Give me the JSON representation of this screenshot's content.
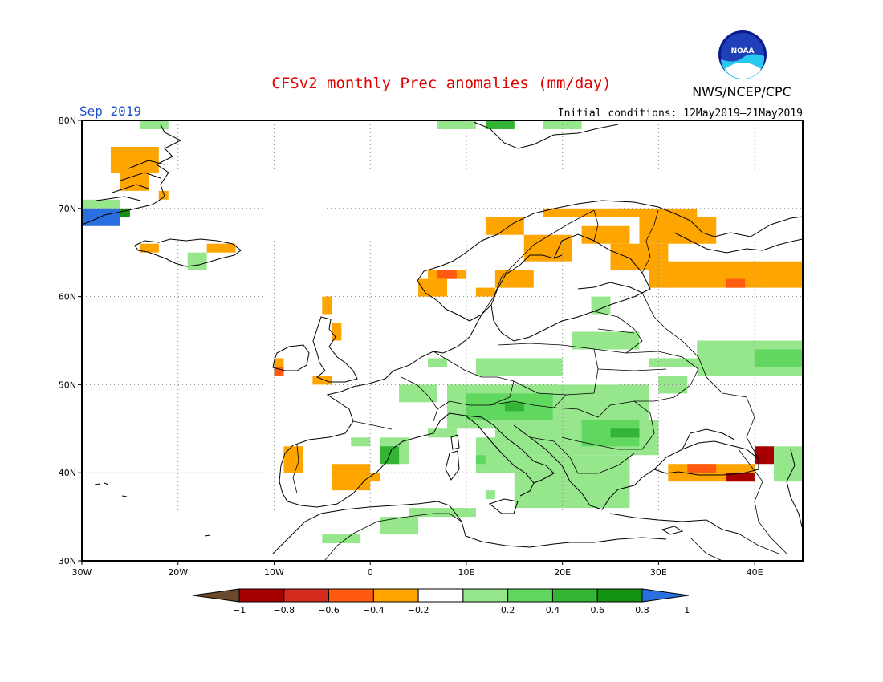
{
  "title": "CFSv2 monthly Prec anomalies (mm/day)",
  "month": "Sep 2019",
  "initial_conditions": "Initial conditions: 12May2019–21May2019",
  "agency": "NWS/NCEP/CPC",
  "logo_text": "NOAA",
  "colors": {
    "title": "#e00000",
    "month": "#1f4fd0",
    "bins": [
      "#6b4a2b",
      "#a80000",
      "#d52a1e",
      "#ff5a10",
      "#ffa500",
      "#ffffff",
      "#96e68c",
      "#60d860",
      "#34b434",
      "#129112",
      "#2a6fe0"
    ]
  },
  "lat_ticks": [
    "30N",
    "40N",
    "50N",
    "60N",
    "70N",
    "80N"
  ],
  "lon_ticks": [
    "30W",
    "20W",
    "10W",
    "0",
    "10E",
    "20E",
    "30E",
    "40E"
  ],
  "colorbar_labels": [
    "−1",
    "−0.8",
    "−0.6",
    "−0.4",
    "−0.2",
    "0.2",
    "0.4",
    "0.6",
    "0.8",
    "1"
  ],
  "grid": {
    "lon_range": [
      -30,
      45
    ],
    "lat_range": [
      30,
      80
    ],
    "cell_deg": 1
  },
  "anomaly_regions": [
    {
      "class": 4,
      "lon": [
        -27,
        -22
      ],
      "lat": [
        74,
        77
      ]
    },
    {
      "class": 4,
      "lon": [
        -26,
        -23
      ],
      "lat": [
        72,
        74
      ]
    },
    {
      "class": 4,
      "lon": [
        -22,
        -21
      ],
      "lat": [
        71,
        72
      ]
    },
    {
      "class": 6,
      "lon": [
        -24,
        -21
      ],
      "lat": [
        79,
        80
      ]
    },
    {
      "class": 6,
      "lon": [
        -30,
        -26
      ],
      "lat": [
        70,
        71
      ]
    },
    {
      "class": 10,
      "lon": [
        -30,
        -26
      ],
      "lat": [
        68,
        70
      ]
    },
    {
      "class": 9,
      "lon": [
        -26,
        -25
      ],
      "lat": [
        69,
        70
      ]
    },
    {
      "class": 4,
      "lon": [
        -24,
        -22
      ],
      "lat": [
        65,
        66
      ]
    },
    {
      "class": 4,
      "lon": [
        -17,
        -14
      ],
      "lat": [
        65,
        66
      ]
    },
    {
      "class": 6,
      "lon": [
        -19,
        -17
      ],
      "lat": [
        63,
        65
      ]
    },
    {
      "class": 4,
      "lon": [
        12,
        16
      ],
      "lat": [
        67,
        69
      ]
    },
    {
      "class": 4,
      "lon": [
        18,
        34
      ],
      "lat": [
        69,
        70
      ]
    },
    {
      "class": 4,
      "lon": [
        16,
        21
      ],
      "lat": [
        64,
        67
      ]
    },
    {
      "class": 4,
      "lon": [
        22,
        27
      ],
      "lat": [
        66,
        68
      ]
    },
    {
      "class": 4,
      "lon": [
        25,
        31
      ],
      "lat": [
        63,
        66
      ]
    },
    {
      "class": 4,
      "lon": [
        29,
        45
      ],
      "lat": [
        61,
        64
      ]
    },
    {
      "class": 4,
      "lon": [
        28,
        36
      ],
      "lat": [
        66,
        69
      ]
    },
    {
      "class": 4,
      "lon": [
        6,
        10
      ],
      "lat": [
        62,
        63
      ]
    },
    {
      "class": 3,
      "lon": [
        7,
        9
      ],
      "lat": [
        62,
        63
      ]
    },
    {
      "class": 4,
      "lon": [
        5,
        8
      ],
      "lat": [
        60,
        62
      ]
    },
    {
      "class": 4,
      "lon": [
        13,
        17
      ],
      "lat": [
        61,
        63
      ]
    },
    {
      "class": 4,
      "lon": [
        11,
        13
      ],
      "lat": [
        60,
        61
      ]
    },
    {
      "class": 3,
      "lon": [
        37,
        39
      ],
      "lat": [
        61,
        62
      ]
    },
    {
      "class": 4,
      "lon": [
        -5,
        -4
      ],
      "lat": [
        58,
        60
      ]
    },
    {
      "class": 4,
      "lon": [
        -4,
        -3
      ],
      "lat": [
        55,
        57
      ]
    },
    {
      "class": 4,
      "lon": [
        -10,
        -9
      ],
      "lat": [
        51,
        53
      ]
    },
    {
      "class": 3,
      "lon": [
        -10,
        -9
      ],
      "lat": [
        51,
        52
      ]
    },
    {
      "class": 4,
      "lon": [
        -6,
        -4
      ],
      "lat": [
        50,
        51
      ]
    },
    {
      "class": 4,
      "lon": [
        -9,
        -7
      ],
      "lat": [
        40,
        43
      ]
    },
    {
      "class": 4,
      "lon": [
        -4,
        0
      ],
      "lat": [
        38,
        41
      ]
    },
    {
      "class": 4,
      "lon": [
        0,
        1
      ],
      "lat": [
        39,
        40
      ]
    },
    {
      "class": 4,
      "lon": [
        31,
        40
      ],
      "lat": [
        39,
        41
      ]
    },
    {
      "class": 3,
      "lon": [
        33,
        36
      ],
      "lat": [
        40,
        41
      ]
    },
    {
      "class": 1,
      "lon": [
        37,
        40
      ],
      "lat": [
        39,
        40
      ]
    },
    {
      "class": 1,
      "lon": [
        40,
        42
      ],
      "lat": [
        41,
        43
      ]
    },
    {
      "class": 6,
      "lon": [
        42,
        45
      ],
      "lat": [
        39,
        43
      ]
    },
    {
      "class": 6,
      "lon": [
        11,
        20
      ],
      "lat": [
        51,
        53
      ]
    },
    {
      "class": 6,
      "lon": [
        8,
        29
      ],
      "lat": [
        45,
        50
      ]
    },
    {
      "class": 7,
      "lon": [
        10,
        19
      ],
      "lat": [
        46,
        49
      ]
    },
    {
      "class": 8,
      "lon": [
        14,
        16
      ],
      "lat": [
        47,
        48
      ]
    },
    {
      "class": 6,
      "lon": [
        13,
        30
      ],
      "lat": [
        42,
        46
      ]
    },
    {
      "class": 7,
      "lon": [
        22,
        28
      ],
      "lat": [
        43,
        46
      ]
    },
    {
      "class": 8,
      "lon": [
        25,
        28
      ],
      "lat": [
        44,
        45
      ]
    },
    {
      "class": 6,
      "lon": [
        15,
        27
      ],
      "lat": [
        36,
        42
      ]
    },
    {
      "class": 6,
      "lon": [
        11,
        17
      ],
      "lat": [
        40,
        44
      ]
    },
    {
      "class": 7,
      "lon": [
        11,
        12
      ],
      "lat": [
        41,
        42
      ]
    },
    {
      "class": 6,
      "lon": [
        1,
        4
      ],
      "lat": [
        41,
        44
      ]
    },
    {
      "class": 8,
      "lon": [
        1,
        3
      ],
      "lat": [
        41,
        43
      ]
    },
    {
      "class": 6,
      "lon": [
        -2,
        0
      ],
      "lat": [
        43,
        44
      ]
    },
    {
      "class": 6,
      "lon": [
        6,
        9
      ],
      "lat": [
        44,
        45
      ]
    },
    {
      "class": 6,
      "lon": [
        34,
        45
      ],
      "lat": [
        51,
        55
      ]
    },
    {
      "class": 7,
      "lon": [
        40,
        45
      ],
      "lat": [
        52,
        54
      ]
    },
    {
      "class": 6,
      "lon": [
        29,
        39
      ],
      "lat": [
        52,
        53
      ]
    },
    {
      "class": 6,
      "lon": [
        21,
        28
      ],
      "lat": [
        54,
        56
      ]
    },
    {
      "class": 6,
      "lon": [
        30,
        33
      ],
      "lat": [
        49,
        51
      ]
    },
    {
      "class": 6,
      "lon": [
        3,
        7
      ],
      "lat": [
        48,
        50
      ]
    },
    {
      "class": 6,
      "lon": [
        6,
        8
      ],
      "lat": [
        52,
        53
      ]
    },
    {
      "class": 6,
      "lon": [
        23,
        25
      ],
      "lat": [
        58,
        60
      ]
    },
    {
      "class": 6,
      "lon": [
        1,
        5
      ],
      "lat": [
        33,
        35
      ]
    },
    {
      "class": 6,
      "lon": [
        -5,
        -1
      ],
      "lat": [
        32,
        33
      ]
    },
    {
      "class": 6,
      "lon": [
        9,
        10
      ],
      "lat": [
        35,
        36
      ]
    },
    {
      "class": 6,
      "lon": [
        12,
        13
      ],
      "lat": [
        37,
        38
      ]
    },
    {
      "class": 6,
      "lon": [
        4,
        11
      ],
      "lat": [
        35,
        36
      ]
    },
    {
      "class": 6,
      "lon": [
        7,
        11
      ],
      "lat": [
        79,
        80
      ]
    },
    {
      "class": 8,
      "lon": [
        12,
        15
      ],
      "lat": [
        79,
        80
      ]
    },
    {
      "class": 6,
      "lon": [
        18,
        22
      ],
      "lat": [
        79,
        80
      ]
    }
  ]
}
